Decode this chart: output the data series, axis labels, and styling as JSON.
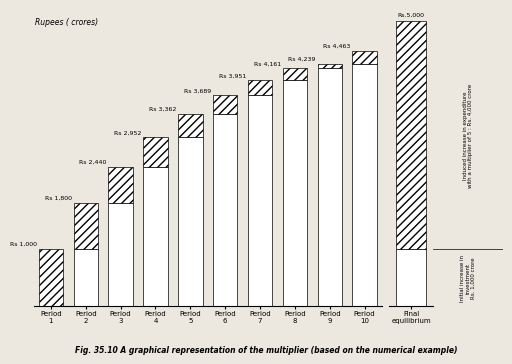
{
  "periods": [
    "Period\n1",
    "Period\n2",
    "Period\n3",
    "Period\n4",
    "Period\n5",
    "Period\n6",
    "Period\n7",
    "Period\n8",
    "Period\n9",
    "Period\n10"
  ],
  "total_values": [
    1000,
    1800,
    2440,
    2952,
    3362,
    3689,
    3951,
    4161,
    4239,
    4463
  ],
  "final_value": 5000,
  "labels": [
    "Rs 1,000",
    "Rs 1,800",
    "Rs 2,440",
    "Rs 2,952",
    "Rs 3,362",
    "Rs 3,689",
    "Rs 3,951",
    "Rs 4,161",
    "Rs 4,239",
    "Rs 4,463"
  ],
  "final_label": "Rs.5,000",
  "ylabel": "Rupees ( crores)",
  "fig_title": "Fig. 35.10 A graphical representation of the multiplier (based on the numerical example)",
  "annotation_induced": "Induced increase in expenditure\nwith a multiplier of 5 : Rs. 4,000 crore",
  "annotation_initial": "Initial increase in\ninvestment\nRs. 1,000 crore",
  "edge_color": "#000000",
  "background_color": "#ede8df",
  "ymax": 5200,
  "bar_width": 0.7
}
